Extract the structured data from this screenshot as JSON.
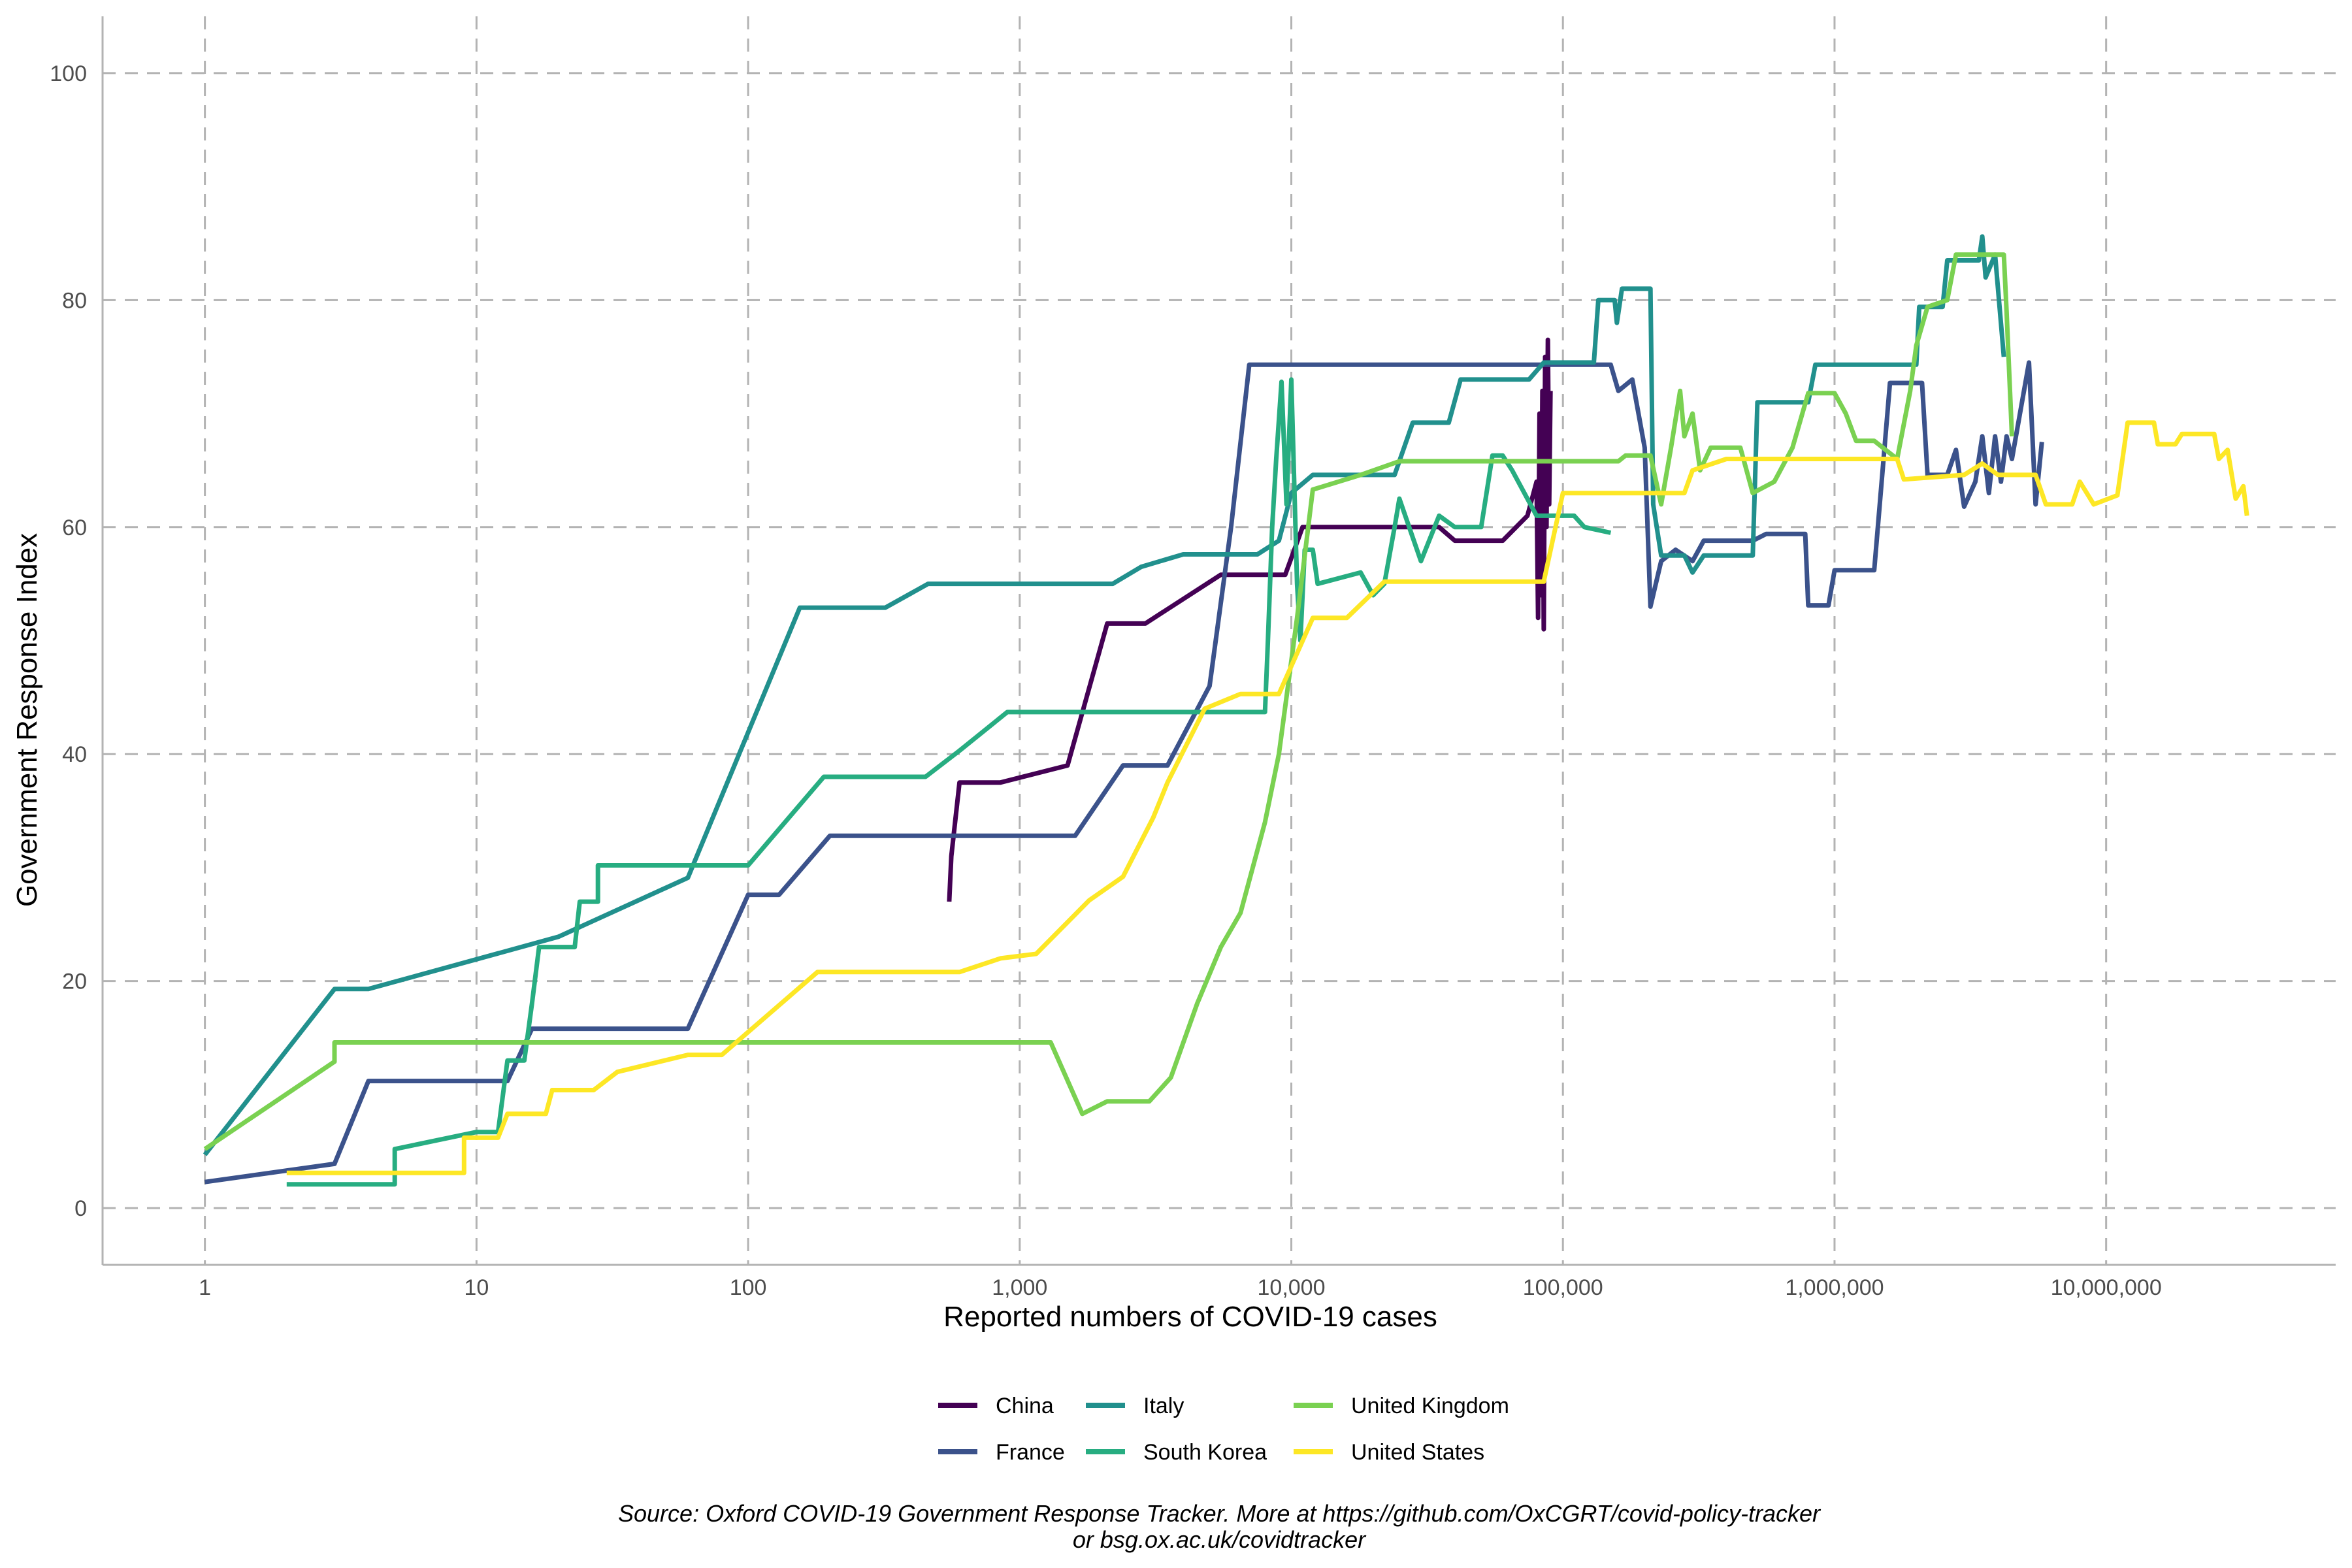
{
  "chart_data": {
    "type": "line",
    "xlabel": "Reported numbers of COVID-19 cases",
    "ylabel": "Government Response Index",
    "x_scale": "log10",
    "xlim": [
      0.42,
      70000000
    ],
    "ylim": [
      -5,
      105
    ],
    "x_ticks": [
      {
        "value": 1,
        "label": "1"
      },
      {
        "value": 10,
        "label": "10"
      },
      {
        "value": 100,
        "label": "100"
      },
      {
        "value": 1000,
        "label": "1,000"
      },
      {
        "value": 10000,
        "label": "10,000"
      },
      {
        "value": 100000,
        "label": "100,000"
      },
      {
        "value": 1000000,
        "label": "1,000,000"
      },
      {
        "value": 10000000,
        "label": "10,000,000"
      }
    ],
    "y_ticks": [
      {
        "value": 0,
        "label": "0"
      },
      {
        "value": 20,
        "label": "20"
      },
      {
        "value": 40,
        "label": "40"
      },
      {
        "value": 60,
        "label": "60"
      },
      {
        "value": 80,
        "label": "80"
      },
      {
        "value": 100,
        "label": "100"
      }
    ],
    "grid": true,
    "legend_position": "bottom",
    "caption_lines": [
      "Source: Oxford COVID-19 Government Response Tracker. More at https://github.com/OxCGRT/covid-policy-tracker",
      "or bsg.ox.ac.uk/covidtracker"
    ],
    "series": [
      {
        "name": "China",
        "color": "#440154",
        "points": [
          [
            550,
            27
          ],
          [
            560,
            31
          ],
          [
            600,
            37.5
          ],
          [
            850,
            37.5
          ],
          [
            1500,
            39
          ],
          [
            2100,
            51.5
          ],
          [
            2900,
            51.5
          ],
          [
            5500,
            55.8
          ],
          [
            9500,
            55.8
          ],
          [
            11000,
            60
          ],
          [
            35000,
            60
          ],
          [
            40000,
            58.8
          ],
          [
            55000,
            58.8
          ],
          [
            60000,
            58.8
          ],
          [
            74000,
            61
          ],
          [
            80000,
            64
          ],
          [
            81000,
            52
          ],
          [
            82000,
            70
          ],
          [
            83000,
            54
          ],
          [
            84000,
            72
          ],
          [
            85000,
            51
          ],
          [
            86000,
            75
          ],
          [
            87000,
            60
          ],
          [
            88000,
            76.5
          ],
          [
            89000,
            62
          ],
          [
            90000,
            72
          ]
        ]
      },
      {
        "name": "France",
        "color": "#3b528b",
        "points": [
          [
            1,
            2.3
          ],
          [
            3,
            3.9
          ],
          [
            4,
            11.2
          ],
          [
            13,
            11.2
          ],
          [
            16,
            15.8
          ],
          [
            60,
            15.8
          ],
          [
            100,
            27.6
          ],
          [
            130,
            27.6
          ],
          [
            200,
            32.8
          ],
          [
            1600,
            32.8
          ],
          [
            2400,
            39
          ],
          [
            3500,
            39
          ],
          [
            5000,
            46
          ],
          [
            6000,
            60
          ],
          [
            7000,
            74.3
          ],
          [
            100000,
            74.3
          ],
          [
            150000,
            74.3
          ],
          [
            160000,
            72
          ],
          [
            180000,
            73
          ],
          [
            200000,
            67
          ],
          [
            210000,
            53
          ],
          [
            230000,
            57
          ],
          [
            260000,
            58
          ],
          [
            300000,
            57
          ],
          [
            330000,
            58.8
          ],
          [
            500000,
            58.8
          ],
          [
            560000,
            59.4
          ],
          [
            780000,
            59.4
          ],
          [
            800000,
            53.1
          ],
          [
            950000,
            53.1
          ],
          [
            1000000,
            56.2
          ],
          [
            1400000,
            56.2
          ],
          [
            1600000,
            72.7
          ],
          [
            2100000,
            72.7
          ],
          [
            2200000,
            64.6
          ],
          [
            2600000,
            64.6
          ],
          [
            2800000,
            66.8
          ],
          [
            3000000,
            61.8
          ],
          [
            3300000,
            64
          ],
          [
            3500000,
            68
          ],
          [
            3700000,
            63
          ],
          [
            3900000,
            68
          ],
          [
            4100000,
            64
          ],
          [
            4300000,
            68
          ],
          [
            4500000,
            66
          ],
          [
            5200000,
            74.5
          ],
          [
            5500000,
            62
          ],
          [
            5800000,
            67.5
          ]
        ]
      },
      {
        "name": "Italy",
        "color": "#21908d",
        "points": [
          [
            1,
            4.7
          ],
          [
            3,
            19.3
          ],
          [
            4,
            19.3
          ],
          [
            20,
            23.9
          ],
          [
            60,
            29.1
          ],
          [
            155,
            52.9
          ],
          [
            320,
            52.9
          ],
          [
            460,
            55
          ],
          [
            2200,
            55
          ],
          [
            2800,
            56.5
          ],
          [
            4000,
            57.6
          ],
          [
            7500,
            57.6
          ],
          [
            9000,
            58.8
          ],
          [
            10000,
            63
          ],
          [
            12000,
            64.6
          ],
          [
            24000,
            64.6
          ],
          [
            28000,
            69.2
          ],
          [
            38000,
            69.2
          ],
          [
            42000,
            73
          ],
          [
            75000,
            73
          ],
          [
            85000,
            74.5
          ],
          [
            130000,
            74.5
          ],
          [
            135000,
            80
          ],
          [
            155000,
            80
          ],
          [
            158000,
            78
          ],
          [
            165000,
            81
          ],
          [
            210000,
            81
          ],
          [
            215000,
            62
          ],
          [
            230000,
            57.5
          ],
          [
            280000,
            57.5
          ],
          [
            300000,
            56
          ],
          [
            330000,
            57.5
          ],
          [
            500000,
            57.5
          ],
          [
            520000,
            71
          ],
          [
            800000,
            71
          ],
          [
            850000,
            74.3
          ],
          [
            2000000,
            74.3
          ],
          [
            2050000,
            79.4
          ],
          [
            2500000,
            79.4
          ],
          [
            2600000,
            83.5
          ],
          [
            3400000,
            83.5
          ],
          [
            3500000,
            85.6
          ],
          [
            3600000,
            82
          ],
          [
            3900000,
            84
          ],
          [
            4200000,
            75
          ]
        ]
      },
      {
        "name": "South Korea",
        "color": "#27ad81",
        "points": [
          [
            2,
            2.1
          ],
          [
            5,
            2.1
          ],
          [
            5,
            5.2
          ],
          [
            10,
            6.7
          ],
          [
            12,
            6.7
          ],
          [
            13,
            13
          ],
          [
            15,
            13
          ],
          [
            16,
            18
          ],
          [
            17,
            23
          ],
          [
            23,
            23
          ],
          [
            24,
            27
          ],
          [
            28,
            27
          ],
          [
            28,
            30.2
          ],
          [
            100,
            30.2
          ],
          [
            190,
            38
          ],
          [
            450,
            38
          ],
          [
            600,
            40.3
          ],
          [
            900,
            43.7
          ],
          [
            4000,
            43.7
          ],
          [
            8000,
            43.7
          ],
          [
            8200,
            50
          ],
          [
            8500,
            60
          ],
          [
            8800,
            66
          ],
          [
            9200,
            72.8
          ],
          [
            9600,
            62
          ],
          [
            10000,
            73
          ],
          [
            10500,
            55
          ],
          [
            10800,
            50
          ],
          [
            11200,
            58
          ],
          [
            12000,
            58
          ],
          [
            12500,
            55
          ],
          [
            18000,
            56
          ],
          [
            20000,
            54
          ],
          [
            22000,
            55
          ],
          [
            24000,
            60
          ],
          [
            25000,
            62.5
          ],
          [
            30000,
            57
          ],
          [
            35000,
            61
          ],
          [
            40000,
            60
          ],
          [
            50000,
            60
          ],
          [
            55000,
            66.3
          ],
          [
            60000,
            66.3
          ],
          [
            65000,
            65
          ],
          [
            80000,
            61
          ],
          [
            110000,
            61
          ],
          [
            120000,
            60
          ],
          [
            150000,
            59.5
          ]
        ]
      },
      {
        "name": "United Kingdom",
        "color": "#7ad151",
        "points": [
          [
            1,
            5.2
          ],
          [
            3,
            12.9
          ],
          [
            3,
            14.6
          ],
          [
            1300,
            14.6
          ],
          [
            1700,
            8.3
          ],
          [
            2100,
            9.4
          ],
          [
            3000,
            9.4
          ],
          [
            3600,
            11.5
          ],
          [
            4500,
            18
          ],
          [
            5500,
            23
          ],
          [
            6500,
            26
          ],
          [
            8000,
            34
          ],
          [
            9000,
            40
          ],
          [
            10500,
            52
          ],
          [
            12000,
            63.3
          ],
          [
            18000,
            64.6
          ],
          [
            25000,
            65.8
          ],
          [
            160000,
            65.8
          ],
          [
            170000,
            66.3
          ],
          [
            210000,
            66.3
          ],
          [
            230000,
            62
          ],
          [
            250000,
            67
          ],
          [
            270000,
            72
          ],
          [
            280000,
            68
          ],
          [
            300000,
            70
          ],
          [
            320000,
            65
          ],
          [
            350000,
            67
          ],
          [
            450000,
            67
          ],
          [
            500000,
            63
          ],
          [
            600000,
            64
          ],
          [
            700000,
            67
          ],
          [
            800000,
            71.8
          ],
          [
            1000000,
            71.8
          ],
          [
            1100000,
            70
          ],
          [
            1200000,
            67.6
          ],
          [
            1400000,
            67.6
          ],
          [
            1700000,
            66
          ],
          [
            1900000,
            72
          ],
          [
            2000000,
            76
          ],
          [
            2200000,
            79.4
          ],
          [
            2600000,
            80
          ],
          [
            2800000,
            84
          ],
          [
            4200000,
            84
          ],
          [
            4300000,
            79
          ],
          [
            4500000,
            68
          ]
        ]
      },
      {
        "name": "United States",
        "color": "#fde725",
        "points": [
          [
            2,
            3.1
          ],
          [
            9,
            3.1
          ],
          [
            9,
            6.2
          ],
          [
            12,
            6.2
          ],
          [
            13,
            8.3
          ],
          [
            18,
            8.3
          ],
          [
            19,
            10.4
          ],
          [
            27,
            10.4
          ],
          [
            33,
            12
          ],
          [
            60,
            13.5
          ],
          [
            80,
            13.5
          ],
          [
            180,
            20.8
          ],
          [
            600,
            20.8
          ],
          [
            850,
            22
          ],
          [
            1150,
            22.4
          ],
          [
            1800,
            27.1
          ],
          [
            2400,
            29.2
          ],
          [
            3100,
            34.4
          ],
          [
            3500,
            37.5
          ],
          [
            4800,
            44
          ],
          [
            6500,
            45.3
          ],
          [
            9000,
            45.3
          ],
          [
            12000,
            52
          ],
          [
            16000,
            52
          ],
          [
            22000,
            55.2
          ],
          [
            85000,
            55.2
          ],
          [
            100000,
            63
          ],
          [
            280000,
            63
          ],
          [
            300000,
            65
          ],
          [
            400000,
            66
          ],
          [
            1700000,
            66
          ],
          [
            1800000,
            64.2
          ],
          [
            3000000,
            64.6
          ],
          [
            3500000,
            65.6
          ],
          [
            4000000,
            64.6
          ],
          [
            5500000,
            64.6
          ],
          [
            6000000,
            62
          ],
          [
            7500000,
            62
          ],
          [
            8000000,
            64
          ],
          [
            9000000,
            62
          ],
          [
            11000000,
            62.8
          ],
          [
            12000000,
            69.2
          ],
          [
            15000000,
            69.2
          ],
          [
            15500000,
            67.3
          ],
          [
            18000000,
            67.3
          ],
          [
            19000000,
            68.2
          ],
          [
            25000000,
            68.2
          ],
          [
            26000000,
            66
          ],
          [
            28000000,
            66.8
          ],
          [
            30000000,
            62.5
          ],
          [
            32000000,
            63.6
          ],
          [
            33000000,
            61
          ]
        ]
      }
    ]
  }
}
